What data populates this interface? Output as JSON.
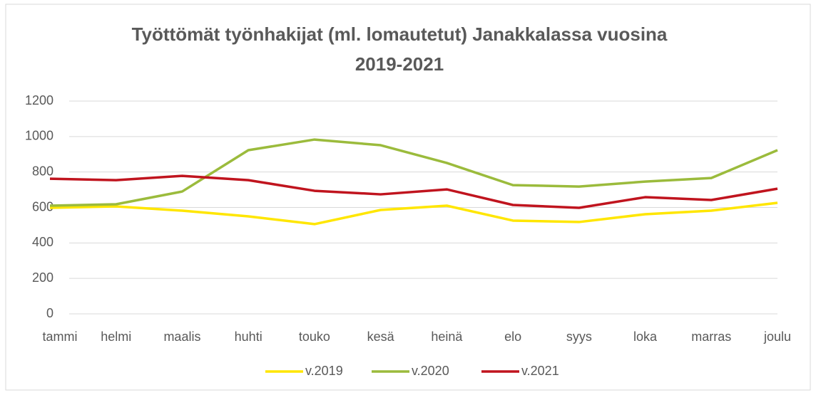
{
  "chart_data": {
    "type": "line",
    "title": "Työttömät työnhakijat (ml. lomautetut) Janakkalassa vuosina 2019-2021",
    "categories": [
      "tammi",
      "helmi",
      "maalis",
      "huhti",
      "touko",
      "kesä",
      "heinä",
      "elo",
      "syys",
      "loka",
      "marras",
      "joulu"
    ],
    "series": [
      {
        "name": "v.2019",
        "color": "#ffe600",
        "values": [
          598,
          606,
          582,
          550,
          506,
          586,
          610,
          526,
          518,
          562,
          582,
          626
        ]
      },
      {
        "name": "v.2020",
        "color": "#9bbb3c",
        "values": [
          610,
          618,
          690,
          923,
          983,
          951,
          851,
          726,
          718,
          746,
          766,
          923
        ]
      },
      {
        "name": "v.2021",
        "color": "#c0141e",
        "values": [
          762,
          754,
          778,
          754,
          694,
          674,
          702,
          614,
          598,
          658,
          642,
          706
        ]
      }
    ],
    "ylim": [
      0,
      1200
    ],
    "yticks": [
      0,
      200,
      400,
      600,
      800,
      1000,
      1200
    ],
    "grid": true,
    "legend": "bottom"
  }
}
